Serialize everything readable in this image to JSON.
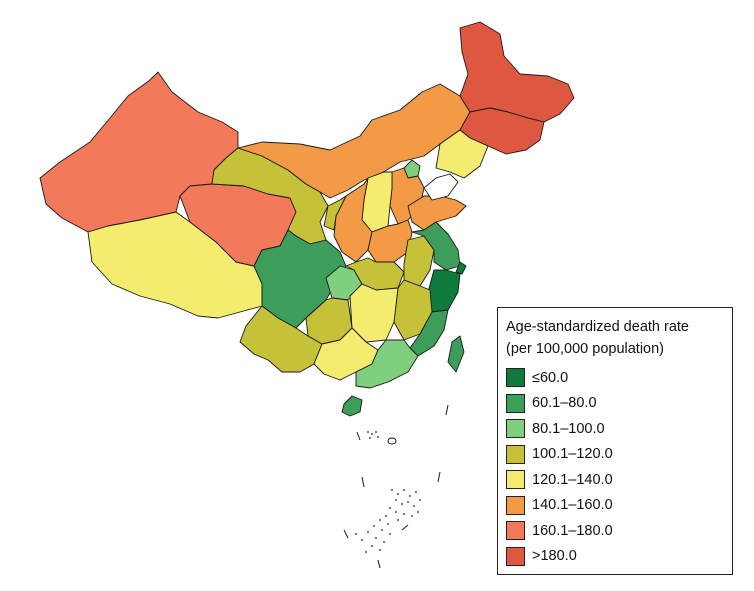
{
  "legend": {
    "title_line1": "Age-standardized death rate",
    "title_line2": "(per 100,000 population)",
    "items": [
      {
        "label": "≤60.0",
        "color": "#0e7a3c"
      },
      {
        "label": "60.1–80.0",
        "color": "#3d9e5c"
      },
      {
        "label": "80.1–100.0",
        "color": "#7fcf7e"
      },
      {
        "label": "100.1–120.0",
        "color": "#c5c23a"
      },
      {
        "label": "120.1–140.0",
        "color": "#f3ec6f"
      },
      {
        "label": "140.1–160.0",
        "color": "#f29a45"
      },
      {
        "label": "160.1–180.0",
        "color": "#f2795a"
      },
      {
        "label": ">180.0",
        "color": "#de5740"
      }
    ]
  }
}
